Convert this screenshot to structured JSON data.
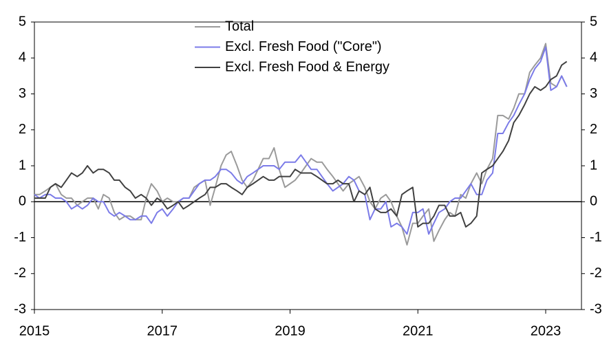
{
  "chart_data": {
    "type": "line",
    "x": [
      2015.0,
      2015.08,
      2015.17,
      2015.25,
      2015.33,
      2015.42,
      2015.5,
      2015.58,
      2015.67,
      2015.75,
      2015.83,
      2015.92,
      2016.0,
      2016.08,
      2016.17,
      2016.25,
      2016.33,
      2016.42,
      2016.5,
      2016.58,
      2016.67,
      2016.75,
      2016.83,
      2016.92,
      2017.0,
      2017.08,
      2017.17,
      2017.25,
      2017.33,
      2017.42,
      2017.5,
      2017.58,
      2017.67,
      2017.75,
      2017.83,
      2017.92,
      2018.0,
      2018.08,
      2018.17,
      2018.25,
      2018.33,
      2018.42,
      2018.5,
      2018.58,
      2018.67,
      2018.75,
      2018.83,
      2018.92,
      2019.0,
      2019.08,
      2019.17,
      2019.25,
      2019.33,
      2019.42,
      2019.5,
      2019.58,
      2019.67,
      2019.75,
      2019.83,
      2019.92,
      2020.0,
      2020.08,
      2020.17,
      2020.25,
      2020.33,
      2020.42,
      2020.5,
      2020.58,
      2020.67,
      2020.75,
      2020.83,
      2020.92,
      2021.0,
      2021.08,
      2021.17,
      2021.25,
      2021.33,
      2021.42,
      2021.5,
      2021.58,
      2021.67,
      2021.75,
      2021.83,
      2021.92,
      2022.0,
      2022.08,
      2022.17,
      2022.25,
      2022.33,
      2022.42,
      2022.5,
      2022.58,
      2022.67,
      2022.75,
      2022.83,
      2022.92,
      2023.0,
      2023.08,
      2023.17,
      2023.25,
      2023.33
    ],
    "series": [
      {
        "name": "Total",
        "color": "#9a9a9a",
        "values": [
          0.2,
          0.2,
          0.3,
          0.4,
          0.5,
          0.2,
          0.1,
          0.1,
          -0.1,
          0.0,
          0.1,
          0.1,
          -0.2,
          0.2,
          0.1,
          -0.3,
          -0.5,
          -0.4,
          -0.4,
          -0.5,
          -0.5,
          0.1,
          0.5,
          0.3,
          0.0,
          0.1,
          0.0,
          0.0,
          0.1,
          0.1,
          0.4,
          0.5,
          0.6,
          -0.1,
          0.4,
          1.0,
          1.3,
          1.4,
          1.0,
          0.6,
          0.4,
          0.6,
          0.9,
          1.2,
          1.2,
          1.5,
          0.9,
          0.4,
          0.5,
          0.6,
          0.8,
          1.0,
          1.2,
          1.1,
          1.1,
          0.9,
          0.7,
          0.5,
          0.3,
          0.5,
          0.6,
          0.7,
          0.4,
          0.0,
          -0.2,
          0.1,
          0.2,
          0.0,
          -0.4,
          -0.7,
          -1.2,
          -0.6,
          -0.6,
          -0.4,
          -0.2,
          -1.1,
          -0.8,
          -0.5,
          -0.3,
          -0.4,
          0.2,
          0.1,
          0.5,
          0.8,
          0.5,
          0.9,
          1.2,
          2.4,
          2.4,
          2.3,
          2.6,
          3.0,
          3.0,
          3.6,
          3.8,
          4.0,
          4.4,
          3.3,
          3.2,
          3.5,
          3.2
        ]
      },
      {
        "name": "Excl. Fresh Food (\"Core\")",
        "color": "#7b7be8",
        "values": [
          0.2,
          0.1,
          0.2,
          0.2,
          0.1,
          0.1,
          0.0,
          -0.2,
          -0.1,
          -0.2,
          -0.1,
          0.1,
          0.0,
          0.0,
          -0.3,
          -0.4,
          -0.3,
          -0.4,
          -0.5,
          -0.5,
          -0.4,
          -0.4,
          -0.6,
          -0.3,
          -0.2,
          -0.4,
          -0.2,
          0.0,
          0.1,
          0.1,
          0.3,
          0.5,
          0.6,
          0.6,
          0.7,
          0.9,
          0.9,
          0.8,
          0.6,
          0.5,
          0.7,
          0.8,
          0.9,
          1.0,
          1.0,
          1.0,
          0.9,
          1.1,
          1.1,
          1.1,
          1.3,
          1.1,
          0.9,
          0.9,
          0.7,
          0.5,
          0.3,
          0.4,
          0.5,
          0.7,
          0.6,
          0.3,
          0.2,
          -0.5,
          -0.2,
          -0.2,
          0.0,
          -0.7,
          -0.6,
          -0.7,
          -0.9,
          -0.3,
          -0.3,
          -0.2,
          -0.9,
          -0.6,
          -0.3,
          -0.2,
          0.0,
          0.1,
          0.1,
          0.3,
          0.5,
          0.2,
          0.2,
          0.6,
          0.8,
          1.9,
          1.9,
          2.2,
          2.4,
          2.7,
          3.0,
          3.4,
          3.7,
          3.9,
          4.3,
          3.1,
          3.2,
          3.5,
          3.2
        ]
      },
      {
        "name": "Excl. Fresh Food & Energy",
        "color": "#404040",
        "values": [
          0.1,
          0.1,
          0.1,
          0.4,
          0.5,
          0.4,
          0.6,
          0.8,
          0.7,
          0.8,
          1.0,
          0.8,
          0.9,
          0.9,
          0.8,
          0.6,
          0.6,
          0.4,
          0.3,
          0.1,
          0.2,
          0.1,
          -0.1,
          0.1,
          0.0,
          -0.2,
          -0.1,
          0.0,
          -0.2,
          -0.1,
          0.0,
          0.1,
          0.2,
          0.4,
          0.4,
          0.5,
          0.5,
          0.4,
          0.3,
          0.2,
          0.4,
          0.5,
          0.6,
          0.7,
          0.6,
          0.6,
          0.7,
          0.7,
          0.7,
          0.9,
          0.8,
          0.8,
          0.8,
          0.7,
          0.6,
          0.5,
          0.5,
          0.6,
          0.5,
          0.5,
          0.0,
          0.3,
          0.2,
          0.4,
          -0.2,
          -0.3,
          -0.3,
          -0.2,
          -0.4,
          0.2,
          0.3,
          0.4,
          -0.7,
          -0.6,
          -0.6,
          -0.4,
          -0.1,
          -0.1,
          -0.4,
          -0.4,
          -0.3,
          -0.7,
          -0.6,
          -0.4,
          0.8,
          0.9,
          1.0,
          1.2,
          1.4,
          1.7,
          2.2,
          2.4,
          2.7,
          3.0,
          3.2,
          3.1,
          3.2,
          3.4,
          3.5,
          3.8,
          3.9
        ]
      }
    ],
    "xlim": [
      2015,
      2023.56
    ],
    "xticks": [
      2015,
      2017,
      2019,
      2021,
      2023
    ],
    "ylim": [
      -3,
      5
    ],
    "yticks": [
      -3,
      -2,
      -1,
      0,
      1,
      2,
      3,
      4,
      5
    ]
  }
}
